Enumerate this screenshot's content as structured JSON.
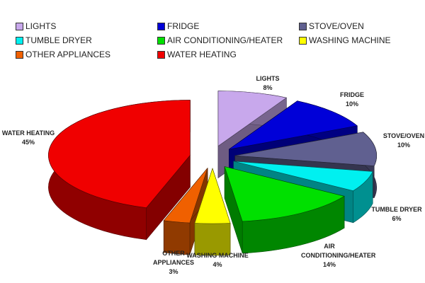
{
  "chart_data": {
    "type": "pie3d",
    "categories": [
      "LIGHTS",
      "FRIDGE",
      "STOVE/OVEN",
      "TUMBLE DRYER",
      "AIR CONDITIONING/HEATER",
      "WASHING MACHINE",
      "OTHER APPLIANCES",
      "WATER HEATING"
    ],
    "values": [
      8,
      10,
      10,
      6,
      14,
      4,
      3,
      45
    ],
    "value_labels": [
      "8%",
      "10%",
      "10%",
      "6%",
      "14%",
      "4%",
      "3%",
      "45%"
    ],
    "colors": [
      "#c8a8ec",
      "#0000d8",
      "#606090",
      "#00f0f0",
      "#00e000",
      "#ffff00",
      "#f06000",
      "#f00000"
    ]
  }
}
